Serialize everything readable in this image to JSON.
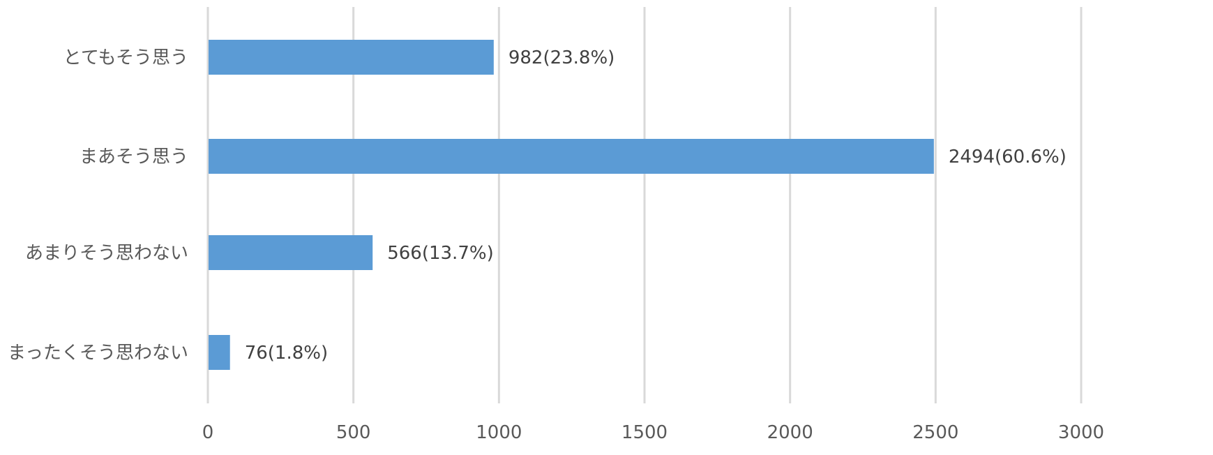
{
  "chart_data": {
    "type": "bar",
    "orientation": "horizontal",
    "title": "",
    "xlabel": "",
    "ylabel": "",
    "categories": [
      "とてもそう思う",
      "まあそう思う",
      "あまりそう思わない",
      "まったくそう思わない"
    ],
    "values": [
      982,
      2494,
      566,
      76
    ],
    "data_labels": [
      "982(23.8%)",
      "2494(60.6%)",
      "566(13.7%)",
      "76(1.8%)"
    ],
    "xlim": [
      0,
      3000
    ],
    "x_ticks": [
      0,
      500,
      1000,
      1500,
      2000,
      2500,
      3000
    ],
    "x_tick_labels": [
      "0",
      "500",
      "1000",
      "1500",
      "2000",
      "2500",
      "3000"
    ],
    "grid": true,
    "legend": "none",
    "colors": {
      "bar": "#5b9bd5",
      "grid": "#d9d9d9",
      "text": "#595959",
      "label_text": "#404040"
    }
  }
}
